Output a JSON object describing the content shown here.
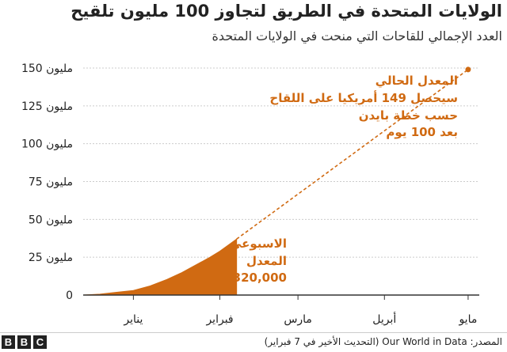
{
  "title": "الولايات المتحدة في الطريق لتجاوز 100 مليون تلقيح",
  "subtitle": "العدد الإجمالي للقاحات التي منحت في الولايات المتحدة",
  "colors": {
    "accent": "#d06a12",
    "axis": "#333333",
    "grid": "#cccccc",
    "text": "#222222"
  },
  "chart_data": {
    "type": "area",
    "y_tick_labels": [
      "0",
      "25 مليون",
      "50 مليون",
      "75 مليون",
      "100 مليون",
      "125 مليون",
      "150 مليون"
    ],
    "y_ticks": [
      0,
      25,
      50,
      75,
      100,
      125,
      150
    ],
    "ylim": [
      0,
      150
    ],
    "x_tick_labels": [
      "يناير",
      "فبراير",
      "مارس",
      "أبريل",
      "مايو"
    ],
    "x_tick_dates": [
      "2021-01-01",
      "2021-02-01",
      "2021-03-01",
      "2021-04-01",
      "2021-05-01"
    ],
    "xlim": [
      "2020-12-14",
      "2021-05-05"
    ],
    "series": [
      {
        "type": "area",
        "x": [
          "2020-12-14",
          "2020-12-20",
          "2020-12-26",
          "2021-01-01",
          "2021-01-07",
          "2021-01-13",
          "2021-01-18",
          "2021-01-23",
          "2021-01-28",
          "2021-02-01",
          "2021-02-04",
          "2021-02-07"
        ],
        "y": [
          0,
          0.6,
          1.8,
          3,
          6,
          10.3,
          14.5,
          19.5,
          24.5,
          29,
          33,
          37
        ]
      },
      {
        "type": "projection",
        "x": [
          "2021-02-07",
          "2021-05-01"
        ],
        "y": [
          37,
          149
        ]
      }
    ],
    "annotations": {
      "weekly_rate": [
        "الاسبوعي",
        "المعدل",
        "1,320,000"
      ],
      "projection": [
        "المعدل الحالي",
        "سيحصل 149 أمريكيا على اللقاح",
        "حسب خطة بايدن",
        "بعد 100 يوم"
      ]
    }
  },
  "footer": {
    "logo": [
      "B",
      "B",
      "C"
    ],
    "source": "المصدر: Our World in Data (التحديث الأخير في 7 فبراير)"
  }
}
